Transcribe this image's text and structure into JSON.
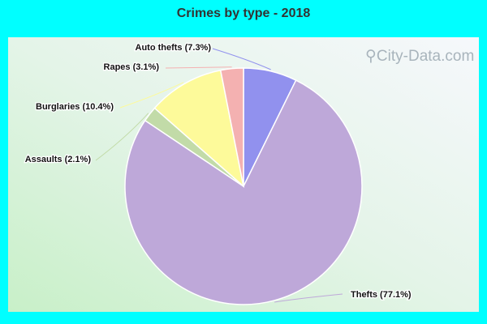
{
  "title": "Crimes by type - 2018",
  "watermark": "City-Data.com",
  "chart_data": {
    "type": "pie",
    "title": "Crimes by type - 2018",
    "categories": [
      "Auto thefts",
      "Thefts",
      "Assaults",
      "Burglaries",
      "Rapes"
    ],
    "values": [
      7.3,
      77.1,
      2.1,
      10.4,
      3.1
    ],
    "labels": [
      "Auto thefts (7.3%)",
      "Thefts (77.1%)",
      "Assaults (2.1%)",
      "Burglaries (10.4%)",
      "Rapes (3.1%)"
    ],
    "colors": [
      "#9191ee",
      "#bea8d9",
      "#c2dba8",
      "#fdfa9a",
      "#f4b1b1"
    ],
    "start_angle_deg": -90,
    "direction": "clockwise"
  }
}
